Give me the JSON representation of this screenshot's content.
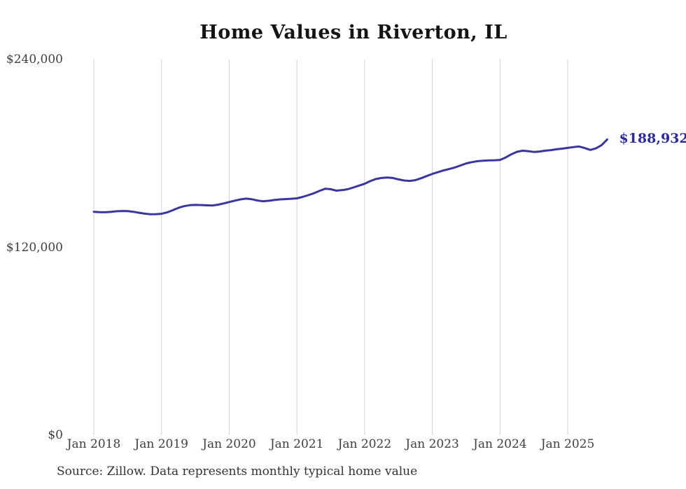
{
  "chart": {
    "title": "Home Values in Riverton, IL",
    "source": "Source: Zillow. Data represents monthly typical home value",
    "end_label": "$188,932",
    "colors": {
      "line": "#3a36a0",
      "end_label_text": "#2b2b9d",
      "grid": "#d2d2d2",
      "tick_text": "#3f3f3f",
      "title_text": "#141414"
    }
  },
  "chart_data": {
    "type": "line",
    "title": "Home Values in Riverton, IL",
    "xlabel": "",
    "ylabel": "",
    "x_unit": "month",
    "x_range": [
      "Jan 2018",
      "Aug 2025"
    ],
    "ylim": [
      0,
      240000
    ],
    "y_ticks": [
      0,
      120000,
      240000
    ],
    "y_tick_labels": [
      "$0",
      "$120,000",
      "$240,000"
    ],
    "x_ticks": [
      0,
      12,
      24,
      36,
      48,
      60,
      72,
      84
    ],
    "x_tick_labels": [
      "Jan 2018",
      "Jan 2019",
      "Jan 2020",
      "Jan 2021",
      "Jan 2022",
      "Jan 2023",
      "Jan 2024",
      "Jan 2025"
    ],
    "grid": "vertical-only",
    "legend": "none",
    "end_value": 188932,
    "series": [
      {
        "name": "Monthly typical home value",
        "values": [
          142700,
          142500,
          142400,
          142600,
          143000,
          143200,
          143100,
          142700,
          142100,
          141500,
          141100,
          141200,
          141400,
          142300,
          143700,
          145200,
          146300,
          146900,
          147100,
          147000,
          146800,
          146700,
          147200,
          148000,
          148900,
          149800,
          150600,
          151100,
          150700,
          149900,
          149400,
          149700,
          150200,
          150600,
          150800,
          151000,
          151300,
          152200,
          153300,
          154500,
          156000,
          157400,
          157100,
          156200,
          156500,
          157100,
          158200,
          159400,
          160600,
          162300,
          163600,
          164300,
          164600,
          164300,
          163400,
          162700,
          162400,
          162900,
          164100,
          165500,
          166900,
          168000,
          169100,
          170000,
          171000,
          172300,
          173600,
          174400,
          175000,
          175300,
          175500,
          175600,
          175800,
          177400,
          179400,
          181000,
          181700,
          181400,
          180900,
          181200,
          181700,
          182100,
          182600,
          183000,
          183500,
          184000,
          184400,
          183400,
          182200,
          183200,
          185300,
          188932
        ]
      }
    ]
  }
}
